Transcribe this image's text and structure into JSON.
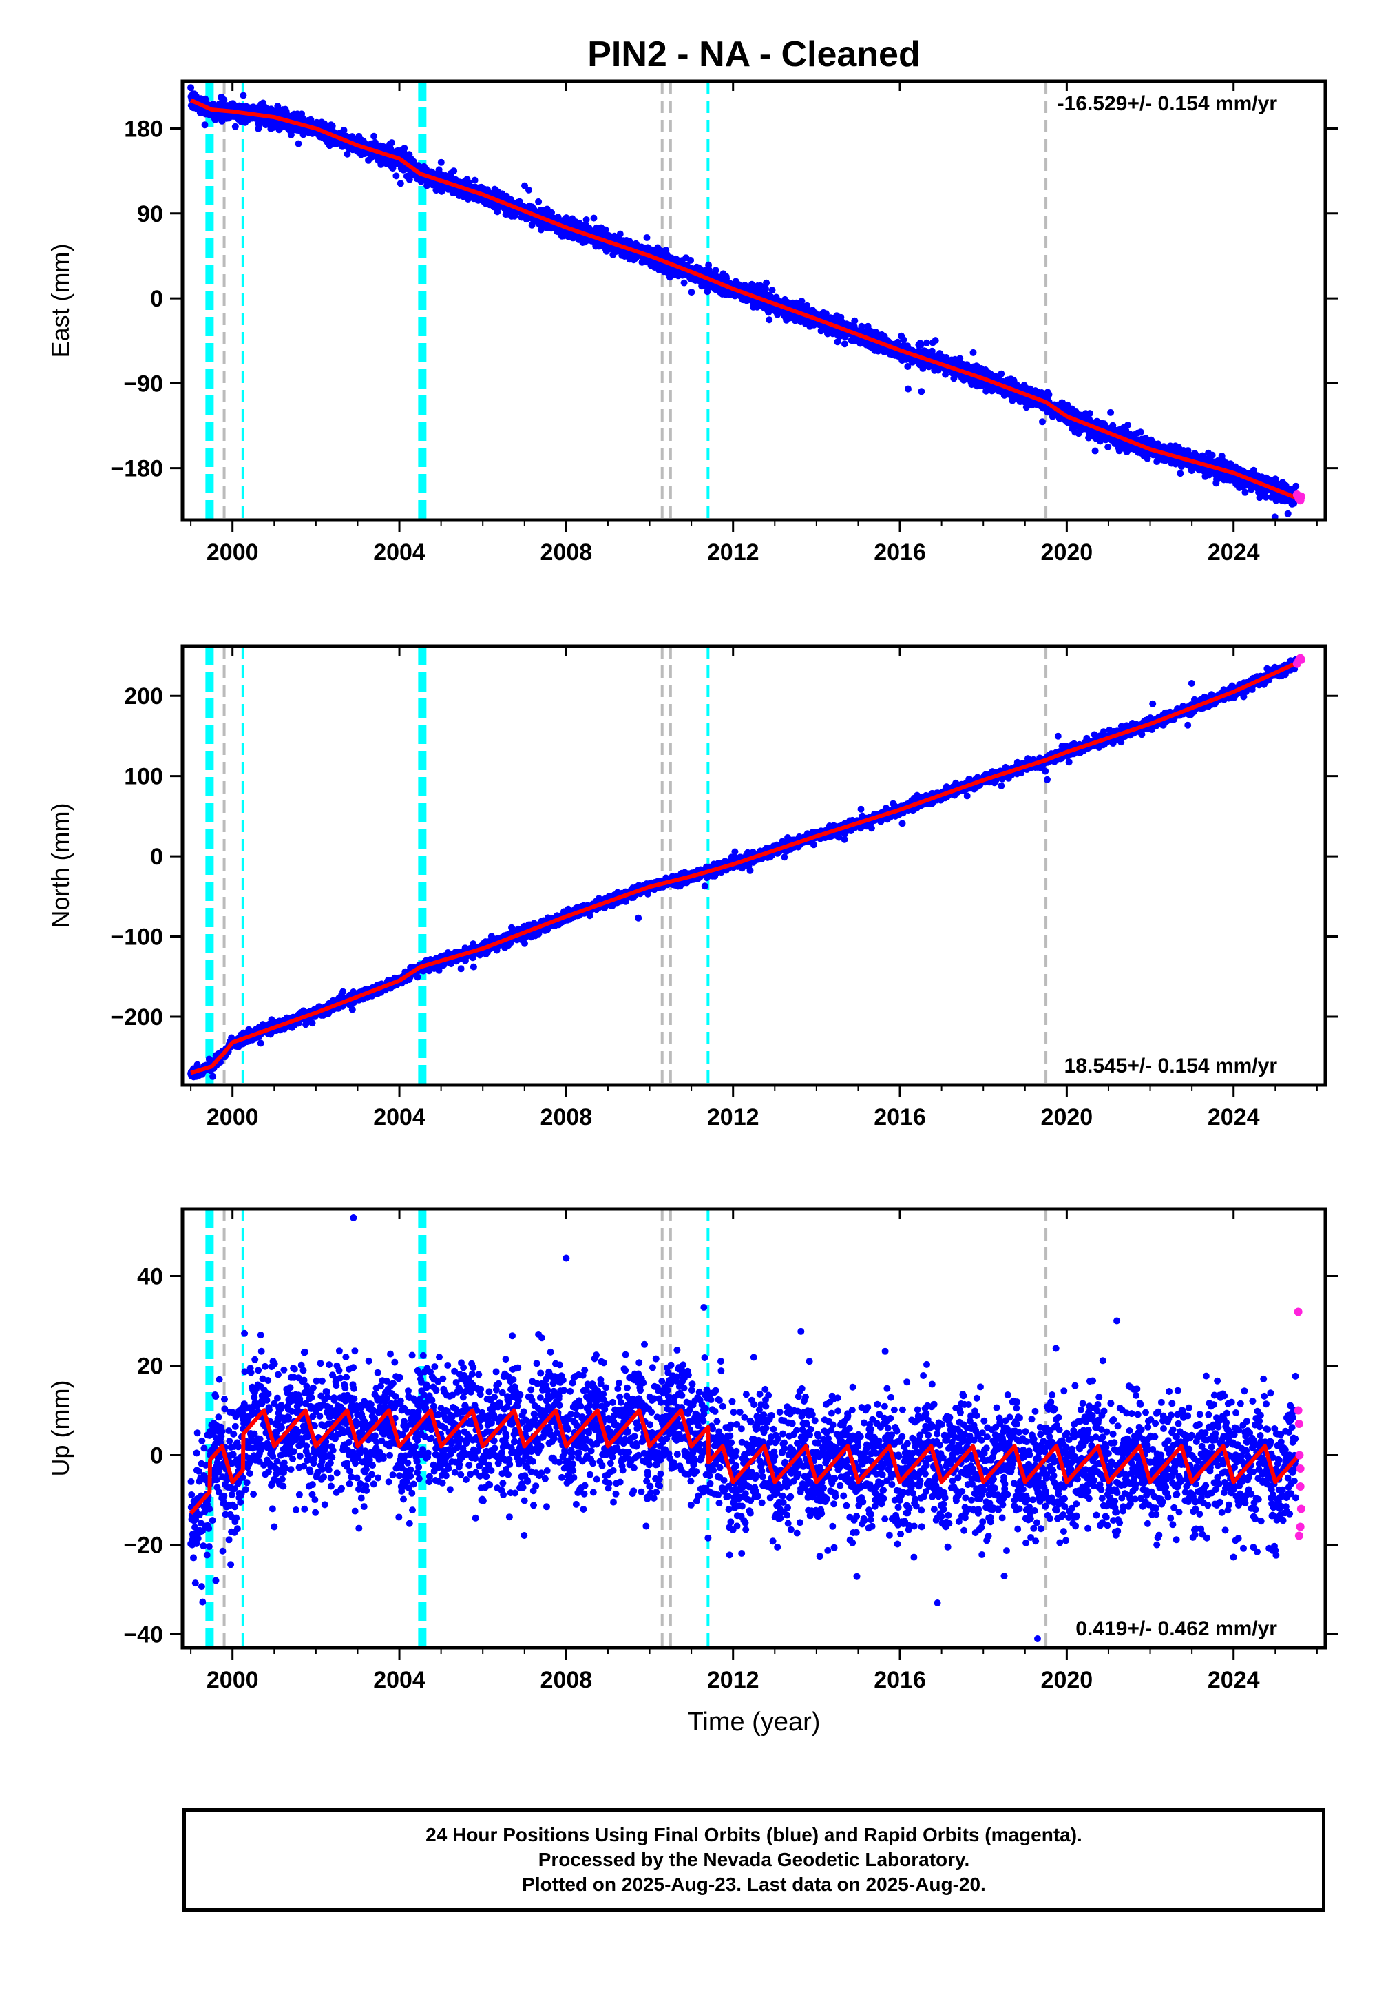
{
  "title": "PIN2  - NA - Cleaned",
  "x_axis_label": "Time (year)",
  "caption": [
    "24 Hour Positions Using Final Orbits (blue) and Rapid Orbits (magenta).",
    "Processed by the Nevada Geodetic Laboratory.",
    "Plotted on 2025-Aug-23. Last data on 2025-Aug-20."
  ],
  "colors": {
    "final_orbits": "#0000ff",
    "rapid_orbits": "#ff22dd",
    "model_fit": "#ff0000",
    "equipment_change": "#00ffff",
    "earthquake": "#bbbbbb"
  },
  "chart_data": [
    {
      "type": "scatter",
      "ylabel": "East (mm)",
      "rate_label": "-16.529+/- 0.154 mm/yr",
      "rate_position": "top-right",
      "xlim": [
        1998.8,
        2026.2
      ],
      "ylim": [
        -235,
        230
      ],
      "x_ticks": [
        2000,
        2004,
        2008,
        2012,
        2016,
        2020,
        2024
      ],
      "y_ticks": [
        -180,
        -90,
        0,
        90,
        180
      ],
      "y_tick_labels": [
        "−180",
        "−90",
        "0",
        "90",
        "180"
      ],
      "trend": {
        "start": [
          1999.0,
          210
        ],
        "end": [
          2025.6,
          -215
        ],
        "rate_mm_per_yr": -16.529
      },
      "fit_points": [
        [
          1999.0,
          210
        ],
        [
          1999.5,
          200
        ],
        [
          2000.0,
          198
        ],
        [
          2001.0,
          192
        ],
        [
          2002.0,
          180
        ],
        [
          2003.0,
          162
        ],
        [
          2004.0,
          148
        ],
        [
          2004.5,
          132
        ],
        [
          2006.0,
          110
        ],
        [
          2008.0,
          75
        ],
        [
          2010.0,
          45
        ],
        [
          2011.0,
          28
        ],
        [
          2012.0,
          10
        ],
        [
          2014.0,
          -22
        ],
        [
          2016.0,
          -55
        ],
        [
          2018.0,
          -85
        ],
        [
          2019.5,
          -110
        ],
        [
          2020.0,
          -125
        ],
        [
          2022.0,
          -160
        ],
        [
          2024.0,
          -185
        ],
        [
          2025.6,
          -213
        ]
      ],
      "scatter_spread_mm": 8,
      "magenta_points": [
        [
          2025.52,
          -208
        ],
        [
          2025.56,
          -212
        ],
        [
          2025.6,
          -214
        ],
        [
          2025.62,
          -210
        ]
      ]
    },
    {
      "type": "scatter",
      "ylabel": "North (mm)",
      "rate_label": "18.545+/- 0.154 mm/yr",
      "rate_position": "bottom-right",
      "xlim": [
        1998.8,
        2026.2
      ],
      "ylim": [
        -285,
        262
      ],
      "x_ticks": [
        2000,
        2004,
        2008,
        2012,
        2016,
        2020,
        2024
      ],
      "y_ticks": [
        -200,
        -100,
        0,
        100,
        200
      ],
      "y_tick_labels": [
        "−200",
        "−100",
        "0",
        "100",
        "200"
      ],
      "trend": {
        "start": [
          1999.0,
          -270
        ],
        "end": [
          2025.6,
          245
        ],
        "rate_mm_per_yr": 18.545
      },
      "fit_points": [
        [
          1999.0,
          -270
        ],
        [
          1999.5,
          -262
        ],
        [
          1999.8,
          -245
        ],
        [
          2000.0,
          -232
        ],
        [
          2002.0,
          -195
        ],
        [
          2004.0,
          -155
        ],
        [
          2004.5,
          -138
        ],
        [
          2006.0,
          -115
        ],
        [
          2008.0,
          -75
        ],
        [
          2010.0,
          -38
        ],
        [
          2011.0,
          -25
        ],
        [
          2012.0,
          -10
        ],
        [
          2014.0,
          25
        ],
        [
          2016.0,
          58
        ],
        [
          2018.0,
          95
        ],
        [
          2019.5,
          120
        ],
        [
          2020.0,
          130
        ],
        [
          2022.0,
          165
        ],
        [
          2024.0,
          205
        ],
        [
          2025.6,
          243
        ]
      ],
      "scatter_spread_mm": 5,
      "magenta_points": [
        [
          2025.52,
          240
        ],
        [
          2025.56,
          244
        ],
        [
          2025.6,
          247
        ],
        [
          2025.62,
          245
        ]
      ]
    },
    {
      "type": "scatter",
      "ylabel": "Up (mm)",
      "rate_label": "0.419+/- 0.462 mm/yr",
      "rate_position": "bottom-right",
      "xlim": [
        1998.8,
        2026.2
      ],
      "ylim": [
        -43,
        55
      ],
      "x_ticks": [
        2000,
        2004,
        2008,
        2012,
        2016,
        2020,
        2024
      ],
      "y_ticks": [
        -40,
        -20,
        0,
        20,
        40
      ],
      "y_tick_labels": [
        "−40",
        "−20",
        "0",
        "20",
        "40"
      ],
      "segments": [
        {
          "from": 1999.0,
          "to": 1999.45,
          "offset": -9
        },
        {
          "from": 1999.45,
          "to": 2000.25,
          "offset": -2
        },
        {
          "from": 2000.25,
          "to": 2011.4,
          "offset": 6
        },
        {
          "from": 2011.4,
          "to": 2025.62,
          "offset": -2
        }
      ],
      "seasonal_amplitude_mm": 4,
      "scatter_spread_mm": 7,
      "outliers": [
        [
          2002.9,
          53
        ],
        [
          2008.0,
          44
        ],
        [
          2011.3,
          33
        ],
        [
          2021.2,
          30
        ],
        [
          2016.9,
          -33
        ],
        [
          2019.3,
          -41
        ],
        [
          1999.6,
          -28
        ],
        [
          2018.5,
          -27
        ],
        [
          2001.0,
          -16
        ]
      ],
      "magenta_points": [
        [
          2025.55,
          32
        ],
        [
          2025.55,
          10
        ],
        [
          2025.57,
          7
        ],
        [
          2025.58,
          0
        ],
        [
          2025.6,
          -3
        ],
        [
          2025.6,
          -7
        ],
        [
          2025.62,
          -12
        ],
        [
          2025.6,
          -16
        ],
        [
          2025.57,
          -18
        ]
      ]
    }
  ],
  "event_lines": [
    {
      "year": 1999.45,
      "kind": "equipment_change",
      "style": "thick-dashed"
    },
    {
      "year": 1999.8,
      "kind": "earthquake",
      "style": "dashed"
    },
    {
      "year": 2000.25,
      "kind": "equipment_change",
      "style": "dashed"
    },
    {
      "year": 2004.55,
      "kind": "equipment_change",
      "style": "thick-dashed"
    },
    {
      "year": 2010.3,
      "kind": "earthquake",
      "style": "dashed"
    },
    {
      "year": 2010.5,
      "kind": "earthquake",
      "style": "dashed"
    },
    {
      "year": 2011.4,
      "kind": "equipment_change",
      "style": "dashed"
    },
    {
      "year": 2019.5,
      "kind": "earthquake",
      "style": "dashed"
    }
  ]
}
